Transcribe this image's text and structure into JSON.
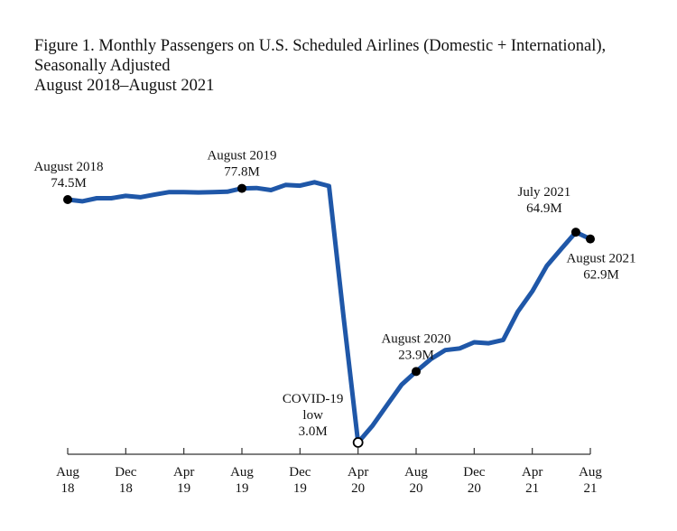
{
  "figure": {
    "title_lines": [
      "Figure 1. Monthly Passengers on U.S. Scheduled Airlines (Domestic + International),",
      "Seasonally Adjusted",
      "August 2018–August 2021"
    ]
  },
  "chart_data": {
    "type": "line",
    "title": "Figure 1. Monthly Passengers on U.S. Scheduled Airlines (Domestic + International), Seasonally Adjusted, August 2018–August 2021",
    "xlabel": "",
    "ylabel": "",
    "units": "millions of passengers",
    "grid": false,
    "legend": "none",
    "line_color": "#1f57a8",
    "ylim": [
      0,
      82
    ],
    "x": [
      "2018-08",
      "2018-09",
      "2018-10",
      "2018-11",
      "2018-12",
      "2019-01",
      "2019-02",
      "2019-03",
      "2019-04",
      "2019-05",
      "2019-06",
      "2019-07",
      "2019-08",
      "2019-09",
      "2019-10",
      "2019-11",
      "2019-12",
      "2020-01",
      "2020-02",
      "2020-03",
      "2020-04",
      "2020-05",
      "2020-06",
      "2020-07",
      "2020-08",
      "2020-09",
      "2020-10",
      "2020-11",
      "2020-12",
      "2021-01",
      "2021-02",
      "2021-03",
      "2021-04",
      "2021-05",
      "2021-06",
      "2021-07",
      "2021-08"
    ],
    "series": [
      {
        "name": "Monthly Passengers (M)",
        "values": [
          74.5,
          74.0,
          74.9,
          74.9,
          75.6,
          75.2,
          76.0,
          76.7,
          76.7,
          76.6,
          76.7,
          76.8,
          77.8,
          77.9,
          77.3,
          78.8,
          78.6,
          79.6,
          78.5,
          40.0,
          3.0,
          8.0,
          14.0,
          20.0,
          23.9,
          27.5,
          30.2,
          30.7,
          32.5,
          32.2,
          33.2,
          41.5,
          47.5,
          55.0,
          60.0,
          64.9,
          62.9
        ]
      }
    ],
    "x_ticks": [
      {
        "index": 0,
        "line1": "Aug",
        "line2": "18"
      },
      {
        "index": 4,
        "line1": "Dec",
        "line2": "18"
      },
      {
        "index": 8,
        "line1": "Apr",
        "line2": "19"
      },
      {
        "index": 12,
        "line1": "Aug",
        "line2": "19"
      },
      {
        "index": 16,
        "line1": "Dec",
        "line2": "19"
      },
      {
        "index": 20,
        "line1": "Apr",
        "line2": "20"
      },
      {
        "index": 24,
        "line1": "Aug",
        "line2": "20"
      },
      {
        "index": 28,
        "line1": "Dec",
        "line2": "20"
      },
      {
        "index": 32,
        "line1": "Apr",
        "line2": "21"
      },
      {
        "index": 36,
        "line1": "Aug",
        "line2": "21"
      }
    ],
    "annotations": [
      {
        "index": 0,
        "value": 74.5,
        "lines": [
          "August 2018",
          "74.5M"
        ],
        "marker": "filled",
        "pos": "above"
      },
      {
        "index": 12,
        "value": 77.8,
        "lines": [
          "August 2019",
          "77.8M"
        ],
        "marker": "filled",
        "pos": "above"
      },
      {
        "index": 20,
        "value": 3.0,
        "lines": [
          "COVID-19",
          "low",
          "3.0M"
        ],
        "marker": "open",
        "pos": "left"
      },
      {
        "index": 24,
        "value": 23.9,
        "lines": [
          "August 2020",
          "23.9M"
        ],
        "marker": "filled",
        "pos": "above"
      },
      {
        "index": 35,
        "value": 64.9,
        "lines": [
          "July 2021",
          "64.9M"
        ],
        "marker": "filled",
        "pos": "above-left"
      },
      {
        "index": 36,
        "value": 62.9,
        "lines": [
          "August 2021",
          "62.9M"
        ],
        "marker": "filled",
        "pos": "below"
      }
    ]
  }
}
